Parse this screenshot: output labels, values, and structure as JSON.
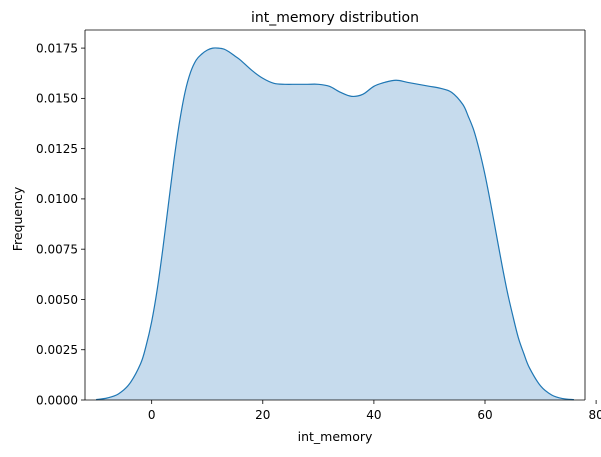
{
  "chart_data": {
    "type": "area",
    "title": "int_memory distribution",
    "xlabel": "int_memory",
    "ylabel": "Frequency",
    "xlim": [
      -12,
      78
    ],
    "ylim": [
      0,
      0.0184
    ],
    "xticks": [
      0,
      20,
      40,
      60,
      80
    ],
    "xtick_labels": [
      "0",
      "20",
      "40",
      "60",
      "80"
    ],
    "yticks": [
      0,
      0.0025,
      0.005,
      0.0075,
      0.01,
      0.0125,
      0.015,
      0.0175
    ],
    "ytick_labels": [
      "0.0000",
      "0.0025",
      "0.0050",
      "0.0075",
      "0.0100",
      "0.0125",
      "0.0150",
      "0.0175"
    ],
    "grid": false,
    "legend": "none",
    "series": [
      {
        "line_color": "#1f77b4",
        "fill_color": "#c6dbed",
        "x": [
          -10,
          -8,
          -6,
          -4,
          -2,
          -1,
          0,
          1,
          2,
          3,
          4,
          5,
          6,
          7,
          8,
          9,
          10,
          11,
          12,
          13,
          14,
          15,
          16,
          18,
          20,
          22,
          24,
          26,
          28,
          30,
          32,
          34,
          36,
          38,
          40,
          42,
          44,
          46,
          48,
          50,
          52,
          54,
          56,
          57,
          58,
          59,
          60,
          61,
          62,
          63,
          64,
          65,
          66,
          67,
          68,
          70,
          72,
          74,
          76
        ],
        "y": [
          2e-05,
          0.0001,
          0.0003,
          0.0008,
          0.0018,
          0.0027,
          0.0039,
          0.0055,
          0.0075,
          0.0097,
          0.0119,
          0.0138,
          0.0153,
          0.0163,
          0.0169,
          0.0172,
          0.0174,
          0.0175,
          0.0175,
          0.01745,
          0.0173,
          0.0171,
          0.0169,
          0.0164,
          0.016,
          0.01575,
          0.0157,
          0.0157,
          0.0157,
          0.0157,
          0.0156,
          0.0153,
          0.0151,
          0.0152,
          0.0156,
          0.0158,
          0.0159,
          0.0158,
          0.0157,
          0.0156,
          0.0155,
          0.0153,
          0.0147,
          0.0141,
          0.0134,
          0.0124,
          0.0112,
          0.0098,
          0.0083,
          0.0068,
          0.0054,
          0.0042,
          0.0031,
          0.0023,
          0.0016,
          0.0007,
          0.00025,
          7e-05,
          2e-05
        ]
      }
    ]
  }
}
